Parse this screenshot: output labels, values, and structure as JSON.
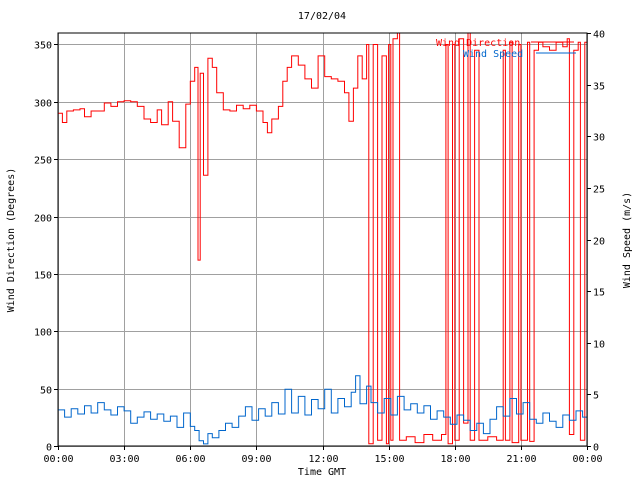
{
  "chart_data": {
    "type": "line",
    "title": "17/02/04",
    "xlabel": "Time GMT",
    "ylabel_left": "Wind Direction (Degrees)",
    "ylabel_right": "Wind Speed (m/s)",
    "x_range_hours": [
      0,
      24
    ],
    "x_ticks": [
      {
        "hour": 0,
        "label": "00:00"
      },
      {
        "hour": 3,
        "label": "03:00"
      },
      {
        "hour": 6,
        "label": "06:00"
      },
      {
        "hour": 9,
        "label": "09:00"
      },
      {
        "hour": 12,
        "label": "12:00"
      },
      {
        "hour": 15,
        "label": "15:00"
      },
      {
        "hour": 18,
        "label": "18:00"
      },
      {
        "hour": 21,
        "label": "21:00"
      },
      {
        "hour": 24,
        "label": "00:00"
      }
    ],
    "ylim_left": [
      0,
      360
    ],
    "yticks_left": [
      0,
      50,
      100,
      150,
      200,
      250,
      300,
      350
    ],
    "ylim_right": [
      0,
      40
    ],
    "yticks_right": [
      0,
      5,
      10,
      15,
      20,
      25,
      30,
      35,
      40
    ],
    "grid": true,
    "legend_position": "top-right",
    "series": [
      {
        "name": "Wind Direction",
        "axis": "left",
        "color": "#ff0000",
        "points": [
          [
            0.0,
            290
          ],
          [
            0.2,
            282
          ],
          [
            0.4,
            292
          ],
          [
            0.7,
            293
          ],
          [
            1.0,
            294
          ],
          [
            1.2,
            287
          ],
          [
            1.5,
            292
          ],
          [
            1.8,
            292
          ],
          [
            2.1,
            299
          ],
          [
            2.4,
            296
          ],
          [
            2.7,
            300
          ],
          [
            3.0,
            301
          ],
          [
            3.3,
            300
          ],
          [
            3.6,
            296
          ],
          [
            3.9,
            285
          ],
          [
            4.2,
            282
          ],
          [
            4.5,
            293
          ],
          [
            4.7,
            280
          ],
          [
            5.0,
            300
          ],
          [
            5.2,
            283
          ],
          [
            5.5,
            260
          ],
          [
            5.8,
            298
          ],
          [
            6.0,
            318
          ],
          [
            6.2,
            330
          ],
          [
            6.35,
            162
          ],
          [
            6.45,
            325
          ],
          [
            6.6,
            236
          ],
          [
            6.8,
            338
          ],
          [
            7.0,
            330
          ],
          [
            7.2,
            308
          ],
          [
            7.5,
            293
          ],
          [
            7.8,
            292
          ],
          [
            8.1,
            297
          ],
          [
            8.4,
            294
          ],
          [
            8.7,
            297
          ],
          [
            9.0,
            292
          ],
          [
            9.3,
            282
          ],
          [
            9.5,
            273
          ],
          [
            9.7,
            285
          ],
          [
            10.0,
            296
          ],
          [
            10.2,
            318
          ],
          [
            10.4,
            330
          ],
          [
            10.6,
            340
          ],
          [
            10.9,
            332
          ],
          [
            11.2,
            320
          ],
          [
            11.5,
            312
          ],
          [
            11.8,
            340
          ],
          [
            12.1,
            322
          ],
          [
            12.4,
            320
          ],
          [
            12.7,
            318
          ],
          [
            13.0,
            308
          ],
          [
            13.2,
            283
          ],
          [
            13.4,
            312
          ],
          [
            13.6,
            340
          ],
          [
            13.8,
            320
          ],
          [
            14.0,
            350
          ],
          [
            14.1,
            2
          ],
          [
            14.3,
            350
          ],
          [
            14.5,
            5
          ],
          [
            14.7,
            340
          ],
          [
            14.9,
            2
          ],
          [
            15.0,
            350
          ],
          [
            15.1,
            5
          ],
          [
            15.2,
            355
          ],
          [
            15.4,
            360
          ],
          [
            15.5,
            5
          ],
          [
            15.8,
            8
          ],
          [
            16.2,
            3
          ],
          [
            16.6,
            10
          ],
          [
            17.0,
            5
          ],
          [
            17.4,
            10
          ],
          [
            17.6,
            350
          ],
          [
            17.7,
            2
          ],
          [
            17.9,
            350
          ],
          [
            18.0,
            5
          ],
          [
            18.2,
            355
          ],
          [
            18.4,
            20
          ],
          [
            18.6,
            360
          ],
          [
            18.7,
            5
          ],
          [
            18.9,
            345
          ],
          [
            19.1,
            5
          ],
          [
            19.5,
            8
          ],
          [
            19.9,
            5
          ],
          [
            20.2,
            345
          ],
          [
            20.3,
            5
          ],
          [
            20.5,
            352
          ],
          [
            20.6,
            3
          ],
          [
            20.9,
            350
          ],
          [
            21.0,
            5
          ],
          [
            21.3,
            352
          ],
          [
            21.4,
            4
          ],
          [
            21.6,
            345
          ],
          [
            21.8,
            352
          ],
          [
            22.0,
            348
          ],
          [
            22.3,
            345
          ],
          [
            22.6,
            352
          ],
          [
            22.9,
            348
          ],
          [
            23.1,
            355
          ],
          [
            23.2,
            10
          ],
          [
            23.4,
            345
          ],
          [
            23.6,
            352
          ],
          [
            23.7,
            5
          ],
          [
            23.9,
            352
          ],
          [
            24.0,
            335
          ]
        ]
      },
      {
        "name": "Wind Speed",
        "axis": "right",
        "color": "#0066cc",
        "points": [
          [
            0.0,
            3.5
          ],
          [
            0.3,
            2.8
          ],
          [
            0.6,
            3.6
          ],
          [
            0.9,
            3.1
          ],
          [
            1.2,
            3.9
          ],
          [
            1.5,
            3.2
          ],
          [
            1.8,
            4.2
          ],
          [
            2.1,
            3.5
          ],
          [
            2.4,
            3.0
          ],
          [
            2.7,
            3.8
          ],
          [
            3.0,
            3.4
          ],
          [
            3.3,
            2.2
          ],
          [
            3.6,
            2.8
          ],
          [
            3.9,
            3.3
          ],
          [
            4.2,
            2.6
          ],
          [
            4.5,
            3.1
          ],
          [
            4.8,
            2.4
          ],
          [
            5.1,
            2.9
          ],
          [
            5.4,
            1.8
          ],
          [
            5.7,
            3.2
          ],
          [
            6.0,
            1.9
          ],
          [
            6.2,
            1.5
          ],
          [
            6.4,
            0.5
          ],
          [
            6.6,
            0.2
          ],
          [
            6.8,
            1.2
          ],
          [
            7.0,
            0.8
          ],
          [
            7.3,
            1.5
          ],
          [
            7.6,
            2.2
          ],
          [
            7.9,
            1.8
          ],
          [
            8.2,
            2.9
          ],
          [
            8.5,
            3.8
          ],
          [
            8.8,
            2.5
          ],
          [
            9.1,
            3.6
          ],
          [
            9.4,
            2.9
          ],
          [
            9.7,
            4.2
          ],
          [
            10.0,
            3.1
          ],
          [
            10.3,
            5.5
          ],
          [
            10.6,
            3.2
          ],
          [
            10.9,
            4.8
          ],
          [
            11.2,
            3.0
          ],
          [
            11.5,
            4.5
          ],
          [
            11.8,
            3.6
          ],
          [
            12.1,
            5.5
          ],
          [
            12.4,
            3.2
          ],
          [
            12.7,
            4.6
          ],
          [
            13.0,
            3.8
          ],
          [
            13.3,
            5.2
          ],
          [
            13.5,
            6.8
          ],
          [
            13.7,
            4.1
          ],
          [
            14.0,
            5.8
          ],
          [
            14.2,
            4.2
          ],
          [
            14.5,
            3.2
          ],
          [
            14.8,
            4.6
          ],
          [
            15.1,
            3.0
          ],
          [
            15.4,
            4.8
          ],
          [
            15.7,
            3.5
          ],
          [
            16.0,
            4.1
          ],
          [
            16.3,
            3.2
          ],
          [
            16.6,
            3.9
          ],
          [
            16.9,
            2.6
          ],
          [
            17.2,
            3.4
          ],
          [
            17.5,
            2.8
          ],
          [
            17.8,
            2.1
          ],
          [
            18.1,
            3.0
          ],
          [
            18.4,
            2.5
          ],
          [
            18.7,
            1.5
          ],
          [
            19.0,
            2.2
          ],
          [
            19.3,
            1.2
          ],
          [
            19.6,
            2.6
          ],
          [
            19.9,
            3.8
          ],
          [
            20.2,
            2.9
          ],
          [
            20.5,
            4.6
          ],
          [
            20.8,
            3.1
          ],
          [
            21.1,
            4.2
          ],
          [
            21.4,
            2.6
          ],
          [
            21.7,
            2.2
          ],
          [
            22.0,
            3.2
          ],
          [
            22.3,
            2.4
          ],
          [
            22.6,
            1.8
          ],
          [
            22.9,
            3.0
          ],
          [
            23.2,
            2.5
          ],
          [
            23.5,
            3.4
          ],
          [
            23.8,
            2.8
          ],
          [
            24.0,
            3.6
          ]
        ]
      }
    ]
  }
}
